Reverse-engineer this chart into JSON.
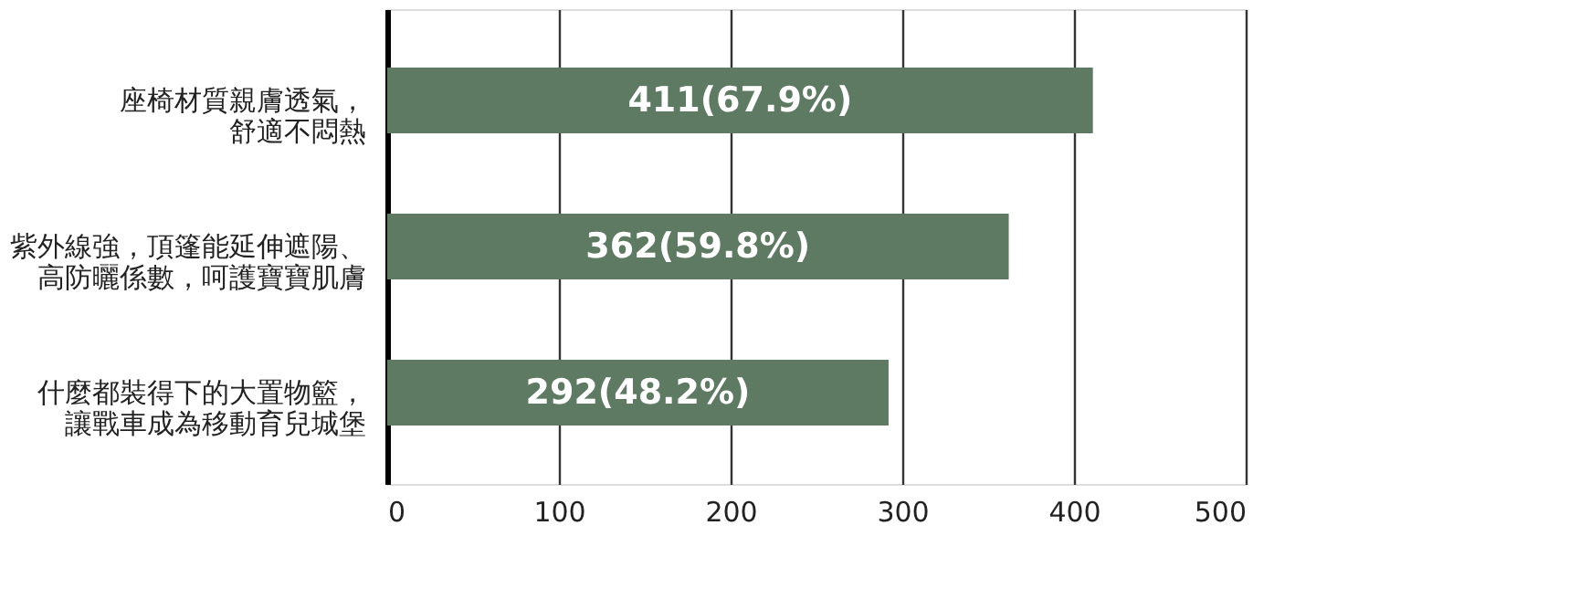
{
  "chart_data": {
    "type": "bar",
    "orientation": "horizontal",
    "categories": [
      "座椅材質親膚透氣，舒適不悶熱",
      "紫外線強，頂篷能延伸遮陽、高防曬係數，呵護寶寶肌膚",
      "什麼都裝得下的大置物籃，讓戰車成為移動育兒城堡"
    ],
    "values": [
      411,
      362,
      292
    ],
    "value_labels": [
      "411(67.9%)",
      "362(59.8%)",
      "292(48.2%)"
    ],
    "color": "#5f7a63",
    "xlim": [
      0,
      500
    ],
    "xticks": [
      0,
      100,
      200,
      300,
      400,
      500
    ],
    "grid": "x"
  }
}
